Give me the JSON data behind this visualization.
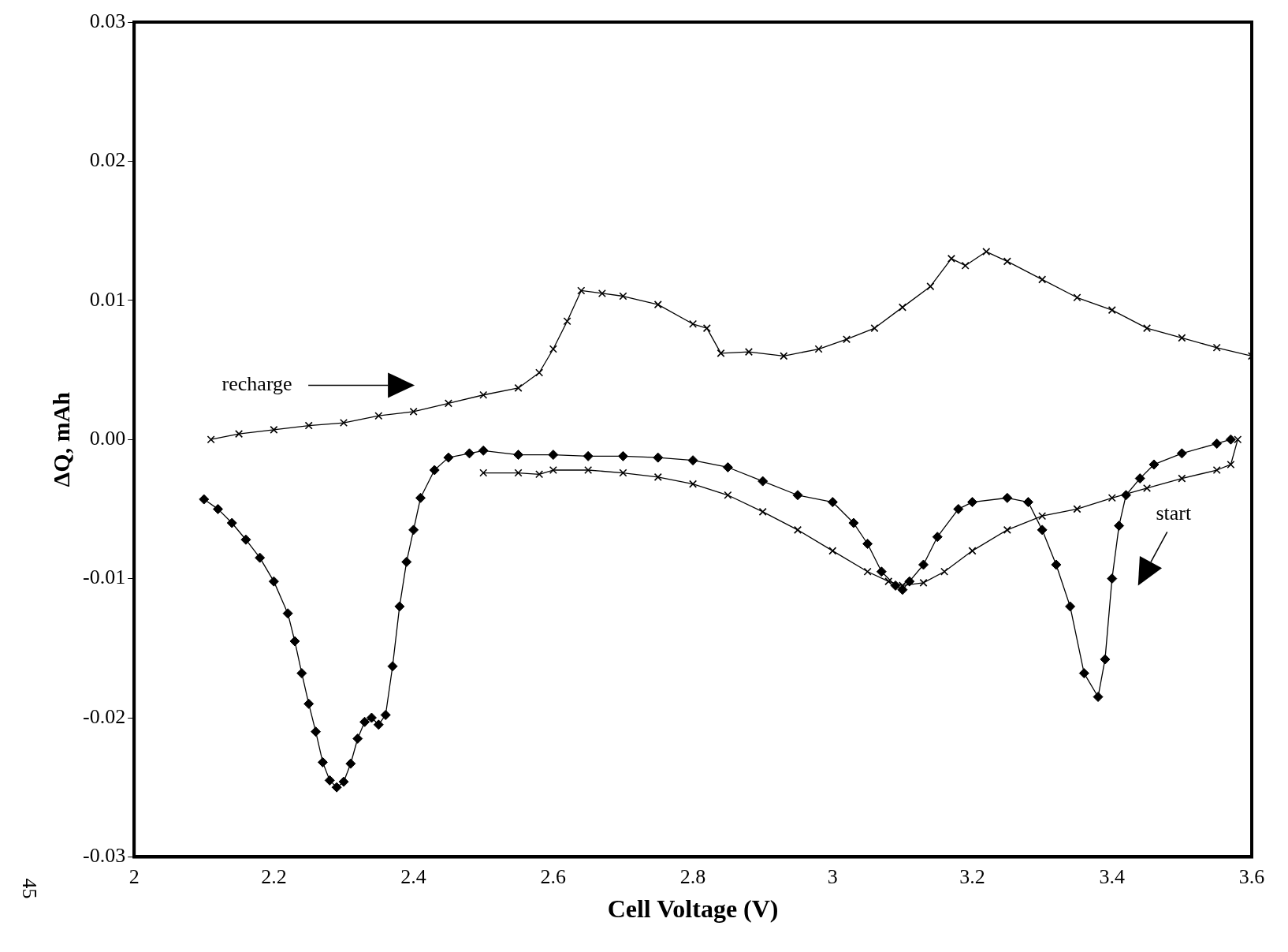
{
  "chart_data": {
    "type": "line",
    "xlabel": "Cell Voltage (V)",
    "ylabel": "ΔQ, mAh",
    "xlim": [
      2,
      3.6
    ],
    "xticks": [
      2,
      2.2,
      2.4,
      2.6,
      2.8,
      3,
      3.2,
      3.4,
      3.6
    ],
    "ylim": [
      -0.03,
      0.03
    ],
    "yticks": [
      -0.03,
      -0.02,
      -0.01,
      {
        "value": 0,
        "label": "0.00"
      },
      0.01,
      0.02,
      0.03
    ],
    "grid": false,
    "legend": false,
    "line_style": "solid",
    "series": [
      {
        "color": "#000000",
        "marker": "diamond",
        "x": [
          2.1,
          2.12,
          2.14,
          2.16,
          2.18,
          2.2,
          2.22,
          2.23,
          2.24,
          2.25,
          2.26,
          2.27,
          2.28,
          2.29,
          2.3,
          2.31,
          2.32,
          2.33,
          2.34,
          2.35,
          2.36,
          2.37,
          2.38,
          2.39,
          2.4,
          2.41,
          2.43,
          2.45,
          2.48,
          2.5,
          2.55,
          2.6,
          2.65,
          2.7,
          2.75,
          2.8,
          2.85,
          2.9,
          2.95,
          3.0,
          3.03,
          3.05,
          3.07,
          3.09,
          3.1,
          3.11,
          3.13,
          3.15,
          3.18,
          3.2,
          3.25,
          3.28,
          3.3,
          3.32,
          3.34,
          3.36,
          3.38,
          3.39,
          3.4,
          3.41,
          3.42,
          3.44,
          3.46,
          3.5,
          3.55,
          3.57
        ],
        "values": [
          -0.0043,
          -0.005,
          -0.006,
          -0.0072,
          -0.0085,
          -0.0102,
          -0.0125,
          -0.0145,
          -0.0168,
          -0.019,
          -0.021,
          -0.0232,
          -0.0245,
          -0.025,
          -0.0246,
          -0.0233,
          -0.0215,
          -0.0203,
          -0.02,
          -0.0205,
          -0.0198,
          -0.0163,
          -0.012,
          -0.0088,
          -0.0065,
          -0.0042,
          -0.0022,
          -0.0013,
          -0.001,
          -0.0008,
          -0.0011,
          -0.0011,
          -0.0012,
          -0.0012,
          -0.0013,
          -0.0015,
          -0.002,
          -0.003,
          -0.004,
          -0.0045,
          -0.006,
          -0.0075,
          -0.0095,
          -0.0105,
          -0.0108,
          -0.0102,
          -0.009,
          -0.007,
          -0.005,
          -0.0045,
          -0.0042,
          -0.0045,
          -0.0065,
          -0.009,
          -0.012,
          -0.0168,
          -0.0185,
          -0.0158,
          -0.01,
          -0.0062,
          -0.004,
          -0.0028,
          -0.0018,
          -0.001,
          -0.0003,
          0.0
        ]
      },
      {
        "color": "#000000",
        "marker": "cross",
        "x": [
          2.5,
          2.55,
          2.58,
          2.6,
          2.65,
          2.7,
          2.75,
          2.8,
          2.85,
          2.9,
          2.95,
          3.0,
          3.05,
          3.08,
          3.1,
          3.13,
          3.16,
          3.2,
          3.25,
          3.3,
          3.35,
          3.4,
          3.45,
          3.5,
          3.55,
          3.57,
          3.58
        ],
        "values": [
          -0.0024,
          -0.0024,
          -0.0025,
          -0.0022,
          -0.0022,
          -0.0024,
          -0.0027,
          -0.0032,
          -0.004,
          -0.0052,
          -0.0065,
          -0.008,
          -0.0095,
          -0.0102,
          -0.0105,
          -0.0103,
          -0.0095,
          -0.008,
          -0.0065,
          -0.0055,
          -0.005,
          -0.0042,
          -0.0035,
          -0.0028,
          -0.0022,
          -0.0018,
          0.0
        ]
      },
      {
        "color": "#000000",
        "marker": "cross",
        "x": [
          2.11,
          2.15,
          2.2,
          2.25,
          2.3,
          2.35,
          2.4,
          2.45,
          2.5,
          2.55,
          2.58,
          2.6,
          2.62,
          2.64,
          2.67,
          2.7,
          2.75,
          2.8,
          2.82,
          2.84,
          2.88,
          2.93,
          2.98,
          3.02,
          3.06,
          3.1,
          3.14,
          3.17,
          3.19,
          3.22,
          3.25,
          3.3,
          3.35,
          3.4,
          3.45,
          3.5,
          3.55,
          3.6
        ],
        "values": [
          0.0,
          0.0004,
          0.0007,
          0.001,
          0.0012,
          0.0017,
          0.002,
          0.0026,
          0.0032,
          0.0037,
          0.0048,
          0.0065,
          0.0085,
          0.0107,
          0.0105,
          0.0103,
          0.0097,
          0.0083,
          0.008,
          0.0062,
          0.0063,
          0.006,
          0.0065,
          0.0072,
          0.008,
          0.0095,
          0.011,
          0.013,
          0.0125,
          0.0135,
          0.0128,
          0.0115,
          0.0102,
          0.0093,
          0.008,
          0.0073,
          0.0066,
          0.006
        ]
      }
    ],
    "annotations": [
      "recharge",
      "start",
      "45"
    ]
  }
}
